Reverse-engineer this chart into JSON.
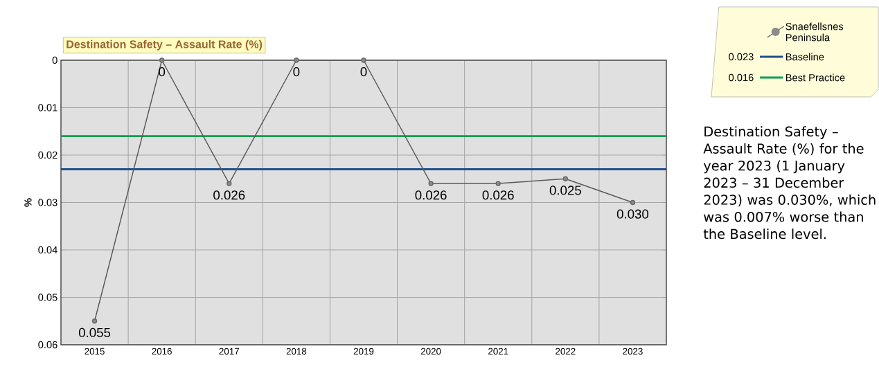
{
  "chart_data": {
    "type": "line",
    "title": "Destination Safety – Assault Rate (%)",
    "ylabel": "%",
    "categories": [
      "2015",
      "2016",
      "2017",
      "2018",
      "2019",
      "2020",
      "2021",
      "2022",
      "2023"
    ],
    "series": [
      {
        "name": "Snaefellsnes Peninsula",
        "color": "#595959",
        "values": [
          0.055,
          0,
          0.026,
          0,
          0,
          0.026,
          0.026,
          0.025,
          0.03
        ],
        "value_labels": [
          "0.055",
          "0",
          "0.026",
          "0",
          "0",
          "0.026",
          "0.026",
          "0.025",
          "0.030"
        ]
      }
    ],
    "ylim": [
      0.06,
      0
    ],
    "yticks": [
      0,
      0.01,
      0.02,
      0.03,
      0.04,
      0.05,
      0.06
    ],
    "ref_lines": [
      {
        "axis": "y",
        "value": 0.023,
        "label": "Baseline",
        "color": "#1f4e8c"
      },
      {
        "axis": "y",
        "value": 0.016,
        "label": "Best Practice",
        "color": "#00a050"
      }
    ],
    "annotations": [
      "0.023",
      "0.016",
      "Destination Safety – Assault Rate (%) for the year 2023 (1 January 2023 – 31 December 2023) was 0.030%, which was 0.007% worse than the Baseline level."
    ],
    "grid": true,
    "marker": "circle",
    "line_style": "solid",
    "legend": "top right"
  }
}
